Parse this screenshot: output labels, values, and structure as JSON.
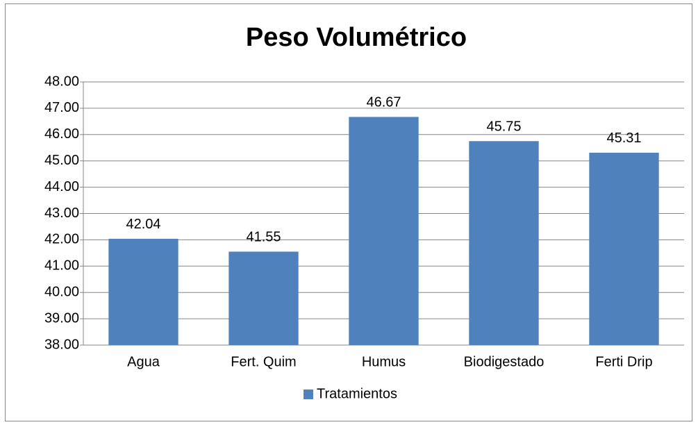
{
  "chart_data": {
    "type": "bar",
    "title": "Peso Volumétrico",
    "categories": [
      "Agua",
      "Fert. Quim",
      "Humus",
      "Biodigestado",
      "Ferti Drip"
    ],
    "series": [
      {
        "name": "Tratamientos",
        "color": "#4f81bd",
        "values": [
          42.04,
          41.55,
          46.67,
          45.75,
          45.31
        ]
      }
    ],
    "ylim": [
      38,
      48
    ],
    "yticks": [
      {
        "value": 38,
        "label": "38.00"
      },
      {
        "value": 39,
        "label": "39.00"
      },
      {
        "value": 40,
        "label": "40.00"
      },
      {
        "value": 41,
        "label": "41.00"
      },
      {
        "value": 42,
        "label": "42.00"
      },
      {
        "value": 43,
        "label": "43.00"
      },
      {
        "value": 44,
        "label": "44.00"
      },
      {
        "value": 45,
        "label": "45.00"
      },
      {
        "value": 46,
        "label": "46.00"
      },
      {
        "value": 47,
        "label": "47.00"
      },
      {
        "value": 48,
        "label": "48.00"
      }
    ],
    "grid": true,
    "legend": "bottom"
  }
}
